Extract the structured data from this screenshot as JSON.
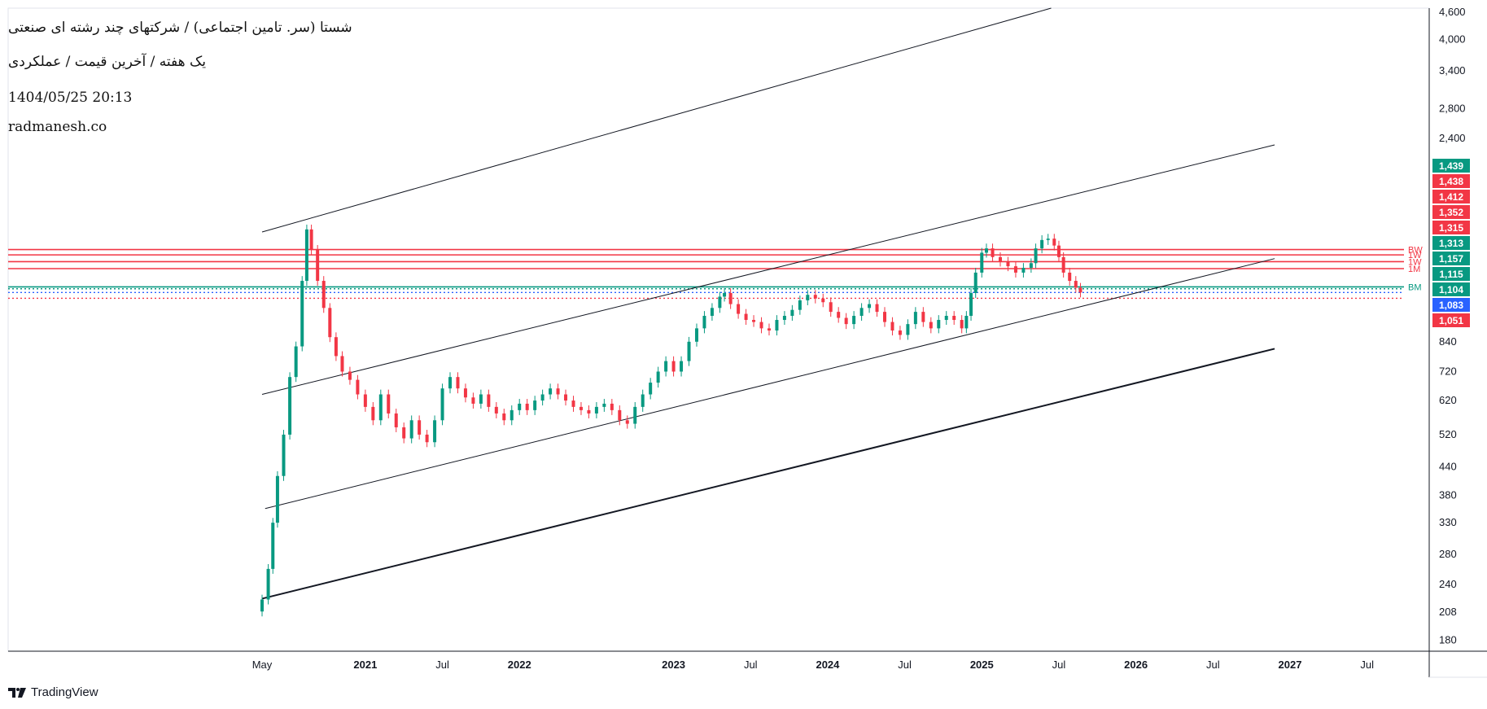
{
  "header": {
    "title": "شستا (سر. تامین اجتماعی) / شرکتهای چند رشته ای صنعتی",
    "subtitle": "یک هفته / آخرین قیمت / عملکردی",
    "datetime": "1404/05/25 20:13",
    "website": "radmanesh.co"
  },
  "footer": {
    "brand": "TradingView"
  },
  "chart_data": {
    "type": "candlestick",
    "scale": "log",
    "ylim": [
      170,
      4700
    ],
    "y_ticks": [
      4600,
      4000,
      3400,
      2800,
      2400,
      840,
      720,
      620,
      520,
      440,
      380,
      330,
      280,
      240,
      208,
      180
    ],
    "x_ticks": [
      {
        "label": "May",
        "bold": false,
        "t": 2020.33
      },
      {
        "label": "2021",
        "bold": true,
        "t": 2021.0
      },
      {
        "label": "Jul",
        "bold": false,
        "t": 2021.5
      },
      {
        "label": "2022",
        "bold": true,
        "t": 2022.0
      },
      {
        "label": "2023",
        "bold": true,
        "t": 2023.0
      },
      {
        "label": "Jul",
        "bold": false,
        "t": 2023.5
      },
      {
        "label": "2024",
        "bold": true,
        "t": 2024.0
      },
      {
        "label": "Jul",
        "bold": false,
        "t": 2024.5
      },
      {
        "label": "2025",
        "bold": true,
        "t": 2025.0
      },
      {
        "label": "Jul",
        "bold": false,
        "t": 2025.5
      },
      {
        "label": "2026",
        "bold": true,
        "t": 2026.0
      },
      {
        "label": "Jul",
        "bold": false,
        "t": 2026.5
      },
      {
        "label": "2027",
        "bold": true,
        "t": 2027.0
      },
      {
        "label": "Jul",
        "bold": false,
        "t": 2027.5
      }
    ],
    "price_labels": [
      {
        "value": 1439,
        "color": "#089981"
      },
      {
        "value": 1438,
        "color": "#f23645"
      },
      {
        "value": 1412,
        "color": "#f23645"
      },
      {
        "value": 1352,
        "color": "#f23645"
      },
      {
        "value": 1315,
        "color": "#f23645"
      },
      {
        "value": 1313,
        "color": "#089981"
      },
      {
        "value": 1157,
        "color": "#089981"
      },
      {
        "value": 1115,
        "color": "#089981"
      },
      {
        "value": 1104,
        "color": "#089981"
      },
      {
        "value": 1083,
        "color": "#2962ff"
      },
      {
        "value": 1051,
        "color": "#f23645"
      }
    ],
    "h_lines": [
      {
        "value": 1352,
        "color": "#f23645",
        "style": "solid",
        "tag": "BW"
      },
      {
        "value": 1315,
        "color": "#f23645",
        "style": "solid",
        "tag": "1W"
      },
      {
        "value": 1270,
        "color": "#f23645",
        "style": "solid",
        "tag": "1W"
      },
      {
        "value": 1225,
        "color": "#f23645",
        "style": "solid",
        "tag": "1M"
      },
      {
        "value": 1115,
        "color": "#089981",
        "style": "solid",
        "tag": "BM"
      },
      {
        "value": 1104,
        "color": "#089981",
        "style": "dotted",
        "tag": ""
      },
      {
        "value": 1083,
        "color": "#2962ff",
        "style": "dotted",
        "tag": ""
      },
      {
        "value": 1051,
        "color": "#f23645",
        "style": "dotted",
        "tag": ""
      }
    ],
    "trend_lines": [
      {
        "t1": 2020.33,
        "v1": 1480,
        "t2": 2025.45,
        "v2": 4700,
        "width": 1
      },
      {
        "t1": 2020.33,
        "v1": 640,
        "t2": 2026.9,
        "v2": 2320,
        "width": 1
      },
      {
        "t1": 2020.35,
        "v1": 355,
        "t2": 2026.9,
        "v2": 1290,
        "width": 1
      },
      {
        "t1": 2020.33,
        "v1": 223,
        "t2": 2026.9,
        "v2": 810,
        "width": 2
      }
    ],
    "series": [
      {
        "t": 2020.33,
        "v": 222
      },
      {
        "t": 2020.37,
        "v": 260
      },
      {
        "t": 2020.4,
        "v": 330
      },
      {
        "t": 2020.43,
        "v": 420
      },
      {
        "t": 2020.47,
        "v": 520
      },
      {
        "t": 2020.51,
        "v": 700
      },
      {
        "t": 2020.55,
        "v": 820
      },
      {
        "t": 2020.59,
        "v": 1150
      },
      {
        "t": 2020.62,
        "v": 1500
      },
      {
        "t": 2020.65,
        "v": 1350
      },
      {
        "t": 2020.69,
        "v": 1150
      },
      {
        "t": 2020.73,
        "v": 1000
      },
      {
        "t": 2020.77,
        "v": 860
      },
      {
        "t": 2020.81,
        "v": 780
      },
      {
        "t": 2020.85,
        "v": 720
      },
      {
        "t": 2020.9,
        "v": 690
      },
      {
        "t": 2020.95,
        "v": 640
      },
      {
        "t": 2021.0,
        "v": 600
      },
      {
        "t": 2021.05,
        "v": 560
      },
      {
        "t": 2021.1,
        "v": 640
      },
      {
        "t": 2021.15,
        "v": 580
      },
      {
        "t": 2021.2,
        "v": 540
      },
      {
        "t": 2021.25,
        "v": 510
      },
      {
        "t": 2021.3,
        "v": 560
      },
      {
        "t": 2021.35,
        "v": 520
      },
      {
        "t": 2021.4,
        "v": 500
      },
      {
        "t": 2021.45,
        "v": 560
      },
      {
        "t": 2021.5,
        "v": 660
      },
      {
        "t": 2021.55,
        "v": 700
      },
      {
        "t": 2021.6,
        "v": 660
      },
      {
        "t": 2021.65,
        "v": 630
      },
      {
        "t": 2021.7,
        "v": 610
      },
      {
        "t": 2021.75,
        "v": 640
      },
      {
        "t": 2021.8,
        "v": 600
      },
      {
        "t": 2021.85,
        "v": 580
      },
      {
        "t": 2021.9,
        "v": 560
      },
      {
        "t": 2021.95,
        "v": 590
      },
      {
        "t": 2022.0,
        "v": 610
      },
      {
        "t": 2022.05,
        "v": 590
      },
      {
        "t": 2022.1,
        "v": 620
      },
      {
        "t": 2022.15,
        "v": 640
      },
      {
        "t": 2022.2,
        "v": 660
      },
      {
        "t": 2022.25,
        "v": 640
      },
      {
        "t": 2022.3,
        "v": 620
      },
      {
        "t": 2022.35,
        "v": 600
      },
      {
        "t": 2022.4,
        "v": 590
      },
      {
        "t": 2022.45,
        "v": 580
      },
      {
        "t": 2022.5,
        "v": 600
      },
      {
        "t": 2022.55,
        "v": 610
      },
      {
        "t": 2022.6,
        "v": 590
      },
      {
        "t": 2022.65,
        "v": 560
      },
      {
        "t": 2022.7,
        "v": 550
      },
      {
        "t": 2022.75,
        "v": 600
      },
      {
        "t": 2022.8,
        "v": 640
      },
      {
        "t": 2022.85,
        "v": 680
      },
      {
        "t": 2022.9,
        "v": 720
      },
      {
        "t": 2022.95,
        "v": 760
      },
      {
        "t": 2023.0,
        "v": 720
      },
      {
        "t": 2023.05,
        "v": 760
      },
      {
        "t": 2023.1,
        "v": 840
      },
      {
        "t": 2023.15,
        "v": 900
      },
      {
        "t": 2023.2,
        "v": 960
      },
      {
        "t": 2023.25,
        "v": 1000
      },
      {
        "t": 2023.3,
        "v": 1060
      },
      {
        "t": 2023.33,
        "v": 1080
      },
      {
        "t": 2023.37,
        "v": 1020
      },
      {
        "t": 2023.42,
        "v": 970
      },
      {
        "t": 2023.47,
        "v": 940
      },
      {
        "t": 2023.52,
        "v": 930
      },
      {
        "t": 2023.57,
        "v": 900
      },
      {
        "t": 2023.62,
        "v": 890
      },
      {
        "t": 2023.67,
        "v": 940
      },
      {
        "t": 2023.72,
        "v": 960
      },
      {
        "t": 2023.77,
        "v": 990
      },
      {
        "t": 2023.82,
        "v": 1040
      },
      {
        "t": 2023.87,
        "v": 1070
      },
      {
        "t": 2023.92,
        "v": 1050
      },
      {
        "t": 2023.97,
        "v": 1030
      },
      {
        "t": 2024.02,
        "v": 980
      },
      {
        "t": 2024.07,
        "v": 950
      },
      {
        "t": 2024.12,
        "v": 920
      },
      {
        "t": 2024.17,
        "v": 960
      },
      {
        "t": 2024.22,
        "v": 1000
      },
      {
        "t": 2024.27,
        "v": 1020
      },
      {
        "t": 2024.32,
        "v": 980
      },
      {
        "t": 2024.37,
        "v": 930
      },
      {
        "t": 2024.42,
        "v": 890
      },
      {
        "t": 2024.47,
        "v": 870
      },
      {
        "t": 2024.52,
        "v": 920
      },
      {
        "t": 2024.57,
        "v": 980
      },
      {
        "t": 2024.62,
        "v": 930
      },
      {
        "t": 2024.67,
        "v": 900
      },
      {
        "t": 2024.72,
        "v": 940
      },
      {
        "t": 2024.77,
        "v": 960
      },
      {
        "t": 2024.82,
        "v": 940
      },
      {
        "t": 2024.87,
        "v": 900
      },
      {
        "t": 2024.9,
        "v": 960
      },
      {
        "t": 2024.93,
        "v": 1080
      },
      {
        "t": 2024.96,
        "v": 1200
      },
      {
        "t": 2025.0,
        "v": 1330
      },
      {
        "t": 2025.03,
        "v": 1360
      },
      {
        "t": 2025.07,
        "v": 1300
      },
      {
        "t": 2025.12,
        "v": 1270
      },
      {
        "t": 2025.17,
        "v": 1240
      },
      {
        "t": 2025.22,
        "v": 1200
      },
      {
        "t": 2025.27,
        "v": 1230
      },
      {
        "t": 2025.32,
        "v": 1260
      },
      {
        "t": 2025.35,
        "v": 1360
      },
      {
        "t": 2025.39,
        "v": 1420
      },
      {
        "t": 2025.43,
        "v": 1430
      },
      {
        "t": 2025.47,
        "v": 1380
      },
      {
        "t": 2025.5,
        "v": 1300
      },
      {
        "t": 2025.53,
        "v": 1200
      },
      {
        "t": 2025.57,
        "v": 1150
      },
      {
        "t": 2025.61,
        "v": 1110
      },
      {
        "t": 2025.64,
        "v": 1083
      }
    ]
  }
}
